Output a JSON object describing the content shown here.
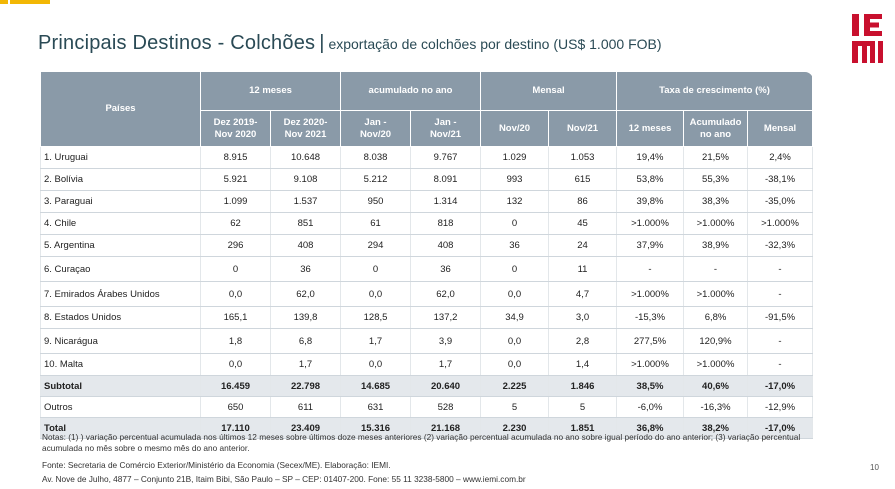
{
  "title": {
    "main": "Principais Destinos - Colchões",
    "separator": "|",
    "subtitle": "exportação de colchões por destino (US$ 1.000 FOB)"
  },
  "logo": {
    "text": "IEMI",
    "color": "#c8102e"
  },
  "table": {
    "header_countries": "Países",
    "groups": [
      "12 meses",
      "acumulado no ano",
      "Mensal",
      "Taxa de crescimento (%)"
    ],
    "columns": [
      "Dez 2019-\nNov 2020",
      "Dez 2020-\nNov 2021",
      "Jan -\nNov/20",
      "Jan -\nNov/21",
      "Nov/20",
      "Nov/21",
      "12 meses",
      "Acumulado\nno ano",
      "Mensal"
    ],
    "rows": [
      [
        "1. Uruguai",
        "8.915",
        "10.648",
        "8.038",
        "9.767",
        "1.029",
        "1.053",
        "19,4%",
        "21,5%",
        "2,4%"
      ],
      [
        "2. Bolívia",
        "5.921",
        "9.108",
        "5.212",
        "8.091",
        "993",
        "615",
        "53,8%",
        "55,3%",
        "-38,1%"
      ],
      [
        "3. Paraguai",
        "1.099",
        "1.537",
        "950",
        "1.314",
        "132",
        "86",
        "39,8%",
        "38,3%",
        "-35,0%"
      ],
      [
        "4. Chile",
        "62",
        "851",
        "61",
        "818",
        "0",
        "45",
        ">1.000%",
        ">1.000%",
        ">1.000%"
      ],
      [
        "5. Argentina",
        "296",
        "408",
        "294",
        "408",
        "36",
        "24",
        "37,9%",
        "38,9%",
        "-32,3%"
      ],
      [
        "6. Curaçao",
        "0",
        "36",
        "0",
        "36",
        "0",
        "11",
        "-",
        "-",
        "-"
      ],
      [
        "7. Emirados Árabes Unidos",
        "0,0",
        "62,0",
        "0,0",
        "62,0",
        "0,0",
        "4,7",
        ">1.000%",
        ">1.000%",
        "-"
      ],
      [
        "8. Estados Unidos",
        "165,1",
        "139,8",
        "128,5",
        "137,2",
        "34,9",
        "3,0",
        "-15,3%",
        "6,8%",
        "-91,5%"
      ],
      [
        "9. Nicarágua",
        "1,8",
        "6,8",
        "1,7",
        "3,9",
        "0,0",
        "2,8",
        "277,5%",
        "120,9%",
        "-"
      ],
      [
        "10. Malta",
        "0,0",
        "1,7",
        "0,0",
        "1,7",
        "0,0",
        "1,4",
        ">1.000%",
        ">1.000%",
        "-"
      ]
    ],
    "subtotal": [
      "Subtotal",
      "16.459",
      "22.798",
      "14.685",
      "20.640",
      "2.225",
      "1.846",
      "38,5%",
      "40,6%",
      "-17,0%"
    ],
    "outros": [
      "Outros",
      "650",
      "611",
      "631",
      "528",
      "5",
      "5",
      "-6,0%",
      "-16,3%",
      "-12,9%"
    ],
    "total": [
      "Total",
      "17.110",
      "23.409",
      "15.316",
      "21.168",
      "2.230",
      "1.851",
      "36,8%",
      "38,2%",
      "-17,0%"
    ]
  },
  "notes": "Notas: (1) ) variação percentual acumulada nos últimos 12 meses sobre últimos doze meses anteriores (2) variação percentual acumulada no ano sobre igual período do ano anterior; (3) variação percentual acumulada no mês sobre o mesmo mês do ano anterior.",
  "source": "Fonte: Secretaria de Comércio Exterior/Ministério da Economia (Secex/ME). Elaboração: IEMI.",
  "address": "Av. Nove de Julho, 4877 – Conjunto 21B, Itaim Bibi, São Paulo – SP – CEP: 01407-200. Fone: 55 11 3238-5800 – www.iemi.com.br",
  "page_number": "10"
}
